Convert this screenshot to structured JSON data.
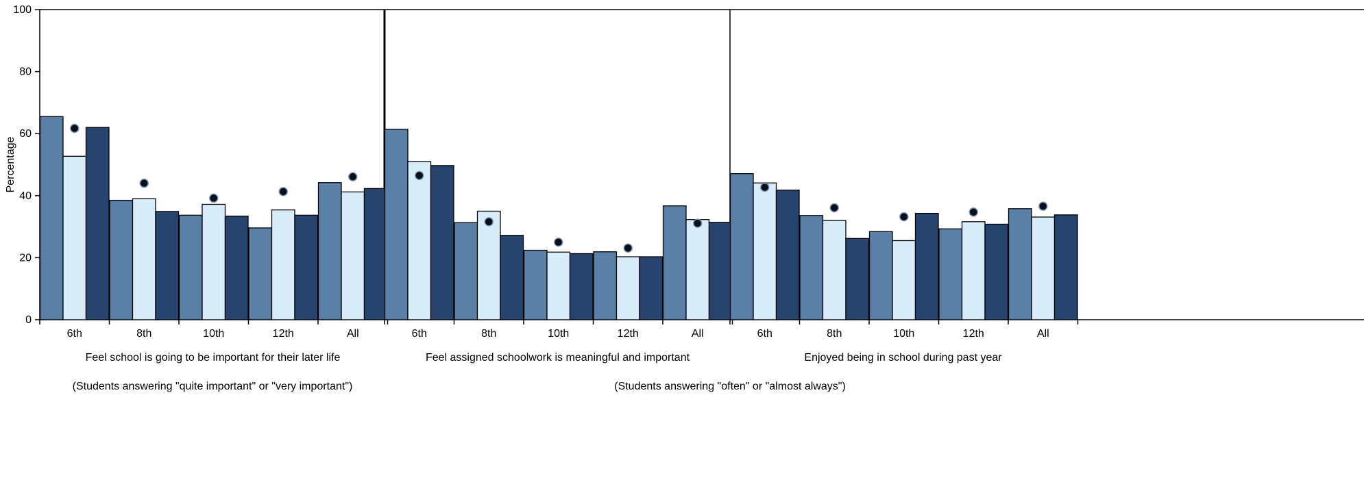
{
  "chart_data": {
    "type": "bar",
    "ylabel": "Percentage",
    "ylim": [
      0,
      100
    ],
    "yticks": [
      "0",
      "20",
      "40",
      "60",
      "80",
      "100"
    ],
    "grid": false,
    "legend": "none",
    "colors": [
      "#5b80a8",
      "#d9ecfa",
      "#27446e"
    ],
    "marker_color": "#0a0f1a",
    "categories": [
      "6th",
      "8th",
      "10th",
      "12th",
      "All"
    ],
    "panels": [
      {
        "title": "Feel school is going to be important for their later life",
        "bars": [
          [
            65.5,
            52.7,
            62.0
          ],
          [
            38.5,
            39.0,
            34.9
          ],
          [
            33.7,
            37.2,
            33.4
          ],
          [
            29.6,
            35.4,
            33.7
          ],
          [
            44.2,
            41.2,
            42.3
          ]
        ],
        "markers": [
          61.7,
          44.0,
          39.2,
          41.3,
          46.1
        ]
      },
      {
        "title": "Feel assigned schoolwork is meaningful and important",
        "bars": [
          [
            61.4,
            51.0,
            49.7
          ],
          [
            31.3,
            35.0,
            27.2
          ],
          [
            22.4,
            21.8,
            21.3
          ],
          [
            21.9,
            20.3,
            20.3
          ],
          [
            36.7,
            32.3,
            31.4
          ]
        ],
        "markers": [
          46.5,
          31.6,
          25.0,
          23.1,
          31.1
        ]
      },
      {
        "title": "Enjoyed being in school during past year",
        "bars": [
          [
            47.1,
            44.1,
            41.8
          ],
          [
            33.6,
            32.0,
            26.2
          ],
          [
            28.4,
            25.5,
            34.3
          ],
          [
            29.3,
            31.6,
            30.8
          ],
          [
            35.8,
            33.1,
            33.8
          ]
        ],
        "markers": [
          42.7,
          36.1,
          33.2,
          34.7,
          36.6
        ]
      }
    ],
    "notes": [
      "(Students answering \"quite important\" or \"very important\")",
      "(Students answering \"often\" or \"almost always\")"
    ]
  }
}
